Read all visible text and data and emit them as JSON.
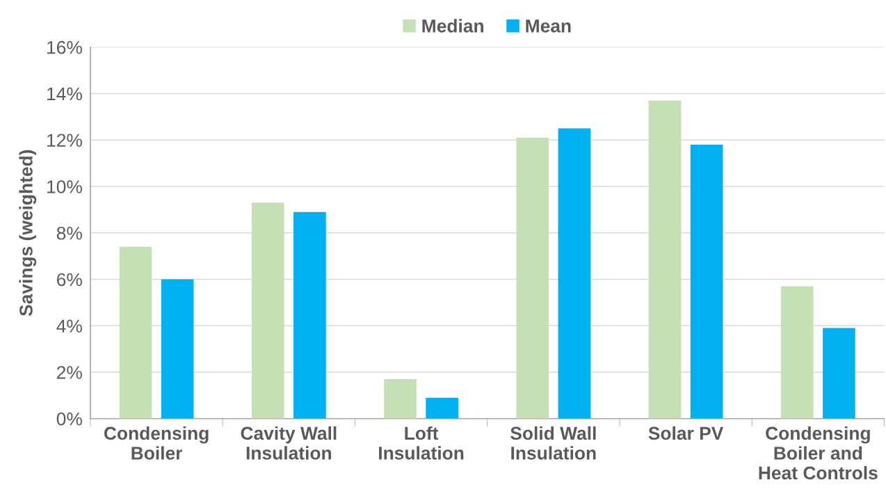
{
  "chart_data": {
    "type": "bar",
    "ylabel": "Savings (weighted)",
    "categories": [
      "Condensing\nBoiler",
      "Cavity Wall\nInsulation",
      "Loft\nInsulation",
      "Solid Wall\nInsulation",
      "Solar PV",
      "Condensing\nBoiler and\nHeat Controls"
    ],
    "series": [
      {
        "name": "Median",
        "color": "#c5e0b4",
        "values": [
          7.4,
          9.3,
          1.7,
          12.1,
          13.7,
          5.7
        ]
      },
      {
        "name": "Mean",
        "color": "#00b0f0",
        "values": [
          6.0,
          8.9,
          0.9,
          12.5,
          11.8,
          3.9
        ]
      }
    ],
    "ylim": [
      0,
      16
    ],
    "yticks": [
      {
        "value": 0,
        "label": "0%"
      },
      {
        "value": 2,
        "label": "2%"
      },
      {
        "value": 4,
        "label": "4%"
      },
      {
        "value": 6,
        "label": "6%"
      },
      {
        "value": 8,
        "label": "8%"
      },
      {
        "value": 10,
        "label": "10%"
      },
      {
        "value": 12,
        "label": "12%"
      },
      {
        "value": 14,
        "label": "14%"
      },
      {
        "value": 16,
        "label": "16%"
      }
    ],
    "grid": "y",
    "legend": "top"
  }
}
